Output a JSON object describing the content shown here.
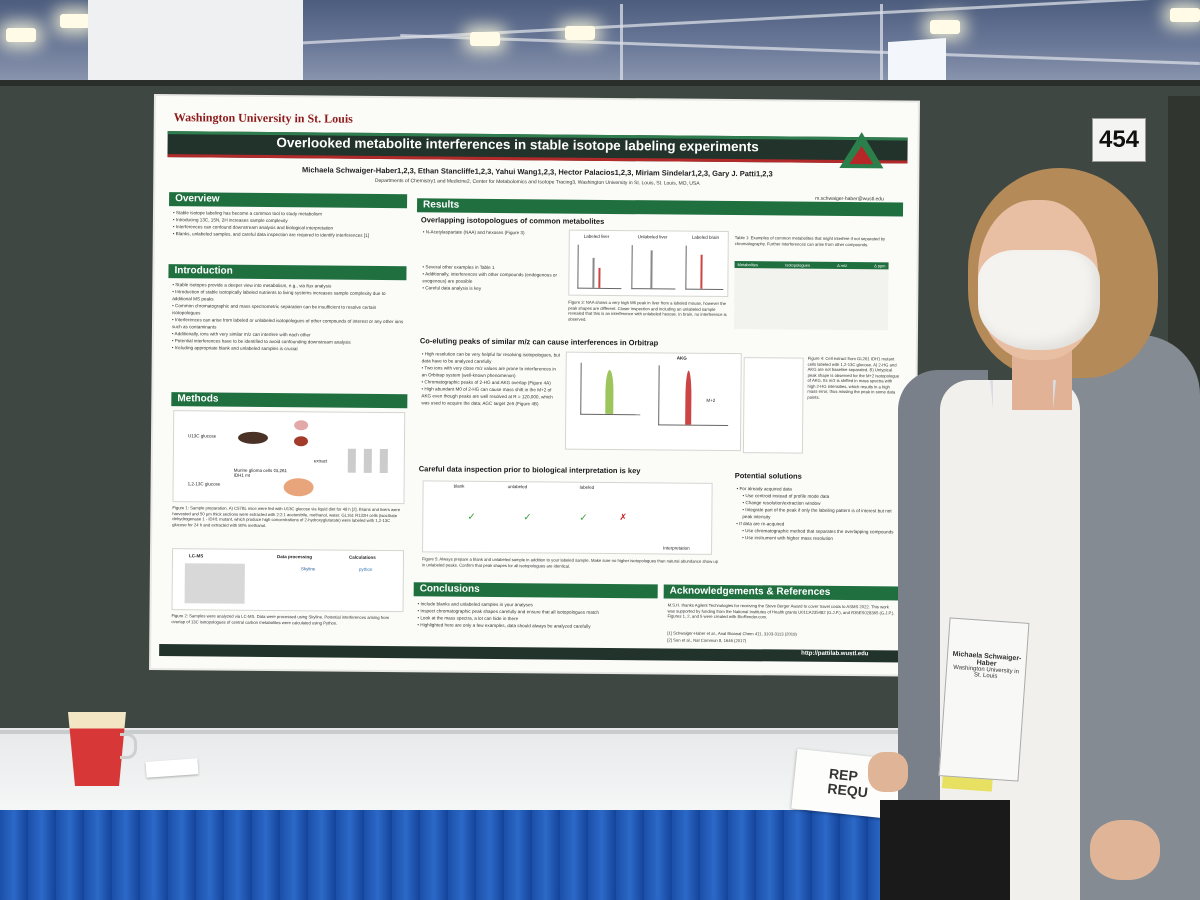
{
  "booth": {
    "number": "454"
  },
  "poster": {
    "institution": "Washington University in St. Louis",
    "title": "Overlooked metabolite interferences in stable isotope labeling experiments",
    "authors": "Michaela Schwaiger-Haber1,2,3, Ethan Stancliffe1,2,3, Yahui Wang1,2,3, Hector Palacios1,2,3, Miriam Sindelar1,2,3, Gary J. Patti1,2,3",
    "affiliations": "Departments of Chemistry1 and Medicine2, Center for Metabolomics and Isotope Tracing3, Washington University in St. Louis, St. Louis, MO, USA",
    "email": "m.schwaiger-haber@wustl.edu",
    "sections": {
      "overview": {
        "heading": "Overview",
        "bullets": [
          "Stable isotope labeling has become a common tool to study metabolism",
          "Introducing 13C, 15N, 2H increases sample complexity",
          "Interferences can confound downstream analysis and biological interpretation",
          "Blanks, unlabeled samples, and careful data inspection are required to identify interferences [1]"
        ]
      },
      "introduction": {
        "heading": "Introduction",
        "bullets": [
          "Stable isotopes provide a deeper view into metabolism, e.g., via flux analysis",
          "Introduction of stable isotopically labeled nutrients to living systems increases sample complexity due to additional MS peaks",
          "Common chromatographic and mass spectrometric separation can be insufficient to resolve certain isotopologues",
          "Interferences can arise from labeled or unlabeled isotopologues of other compounds of interest or any other ions such as contaminants",
          "Additionally, ions with very similar m/z can interfere with each other",
          "Potential interferences have to be identified to avoid confounding downstream analysis",
          "Including appropriate blank and unlabeled samples is crucial"
        ]
      },
      "methods": {
        "heading": "Methods",
        "labels": {
          "glucose_u": "U13C glucose",
          "glucose_12": "1,2-13C glucose",
          "extract": "extract",
          "cells": "Murine glioma cells GL261 IDH1 mt",
          "lcms": "LC-MS",
          "processing": "Data processing",
          "calculations": "Calculations",
          "skyline": "Skyline",
          "python": "python"
        },
        "fig1_caption": "Figure 1: Sample preparation. A) C57BL mice were fed with U13C glucose via liquid diet for 48 h [2]. Brains and livers were harvested and 50 µm thick sections were extracted with 2:2:1 acetonitrile, methanol, water. GL161 R132H cells (isocitrate dehydrogenase 1 - IDH1 mutant, which produce high concentrations of 2-hydroxyglutarate) were labeled with 1,2-13C glucose for 24 h and extracted with 80% methanol.",
        "fig2_caption": "Figure 2: Samples were analyzed via LC-MS. Data were processed using Skyline. Potential interferences arising from overlap of 13C isotopologues of central carbon metabolites were calculated using Python."
      },
      "results": {
        "heading": "Results",
        "sub1": "Overlapping isotopologues of common metabolites",
        "sub1_bullets": [
          "N-Acetylaspartate (NAA) and hexoses (Figure 3)",
          "Several other examples in Table 1",
          "Additionally, interferences with other compounds (endogenous or exogenous) are possible",
          "Careful data analysis is key"
        ],
        "fig3_labels": [
          "Labeled liver",
          "Unlabeled liver",
          "Labeled brain"
        ],
        "fig3_caption": "Figure 3: NAA shows a very high M6 peak in liver from a labeled mouse, however the peak shapes are different. Closer inspection and including an unlabeled sample revealed that this is an interference with unlabeled hexose. In brain, no interference is observed.",
        "table1_caption": "Table 1: Examples of common metabolites that might interfere if not separated by chromatography. Further interferences can arise from other compounds.",
        "table1_header": [
          "Metabolites",
          "Isotopologues",
          "Δ m/z",
          "Δ ppm"
        ],
        "sub2": "Co-eluting peaks of similar m/z can cause interferences in Orbitrap",
        "sub2_bullets": [
          "High resolution can be very helpful for resolving isotopologues, but data have to be analyzed carefully",
          "Two ions with very close m/z values are prone to interferences in an Orbitrap system (well-known phenomenon)",
          "Chromatographic peaks of 2-HG and AKG overlap (Figure 4A)",
          "High abundant M0 of 2-HG can cause mass shift in the M+2 of AKG even though peaks are well resolved at R = 120,000, which was used to acquire the data; AGC target 2e5 (Figure 4B)"
        ],
        "fig4_b_label": "AKG",
        "fig4_peak_label": "M+2",
        "fig4_caption": "Figure 4: Cell extract from GL261 IDH1 mutant cells labeled with 1,2-13C glucose. A) 2-HG and AKG are not baseline separated. B) Untypical peak shape is observed for the M+2 isotopologue of AKG. Its m/z is shifted in mass spectra with high 2-HG intensities, which results in a high mass error, thus missing the peak in some data points.",
        "sub3": "Careful data inspection prior to biological interpretation is key",
        "fig5_labels": [
          "blank",
          "unlabeled",
          "labeled",
          "Interpretation"
        ],
        "fig5_caption": "Figure 5: Always prepare a blank and unlabeled sample in addition to your labeled sample. Make sure no higher isotopologues than natural abundance show up in unlabeled peaks. Confirm that peak shapes for all isotopologues are identical.",
        "solutions_heading": "Potential solutions",
        "solutions": [
          "For already acquired data",
          "Use centroid instead of profile mode data",
          "Change resolution/extraction window",
          "Integrate part of the peak if only the labeling pattern is of interest but not peak intensity",
          "If data are re-acquired",
          "Use chromatographic method that separates the overlapping compounds",
          "Use instrument with higher mass resolution"
        ]
      },
      "conclusions": {
        "heading": "Conclusions",
        "bullets": [
          "Include blanks and unlabeled samples in your analyses",
          "Inspect chromatographic peak shapes carefully and ensure that all isotopologues match",
          "Look at the mass spectra, a lot can hide in there",
          "Highlighted here are only a few examples, data should always be analyzed carefully"
        ]
      },
      "acknowledgements": {
        "heading": "Acknowledgements & References",
        "text": "M.S.H. thanks Agilent Technologies for receiving the Steve Berger Award to cover travel costs to ASMS 2022. This work was supported by funding from the National Institutes of Health grants U01CA235482 (G.J.P.), and R35ES028365 (G.J.P.). Figures 1, 2, and 5 were created with BioRender.com.",
        "refs": [
          "[1] Schwaiger-Haber et al., Anal Bioanal Chem 411, 3103-3113 (2019)",
          "[2] Sun et al., Nat Commun 8, 1646 (2017)"
        ]
      }
    },
    "footer_url": "http://pattilab.wustl.edu"
  },
  "badge": {
    "name": "Michaela Schwaiger-Haber",
    "org": "Washington University in St. Louis"
  },
  "sign": {
    "line1": "REP",
    "line2": "REQU"
  }
}
